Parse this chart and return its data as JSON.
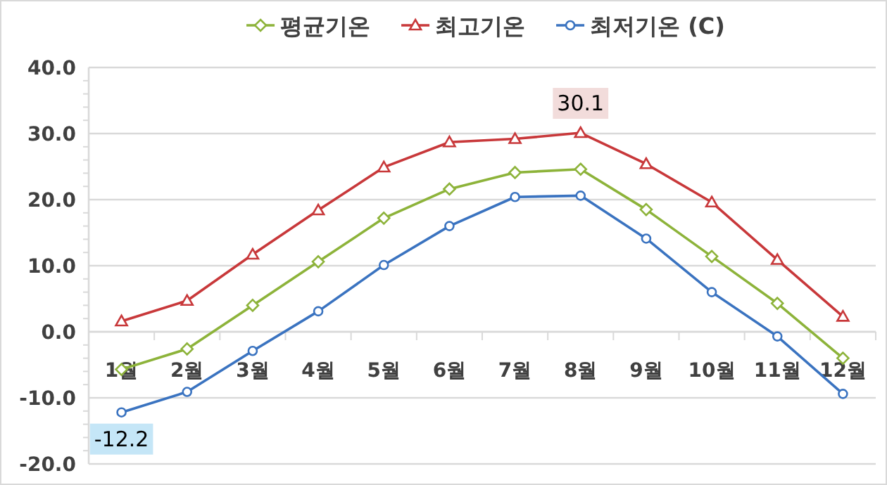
{
  "chart_data": {
    "type": "line",
    "categories": [
      "1월",
      "2월",
      "3월",
      "4월",
      "5월",
      "6월",
      "7월",
      "8월",
      "9월",
      "10월",
      "11월",
      "12월"
    ],
    "series": [
      {
        "name": "평균기온",
        "color": "#8db33a",
        "marker": "diamond",
        "values": [
          -5.7,
          -2.6,
          4.0,
          10.6,
          17.2,
          21.6,
          24.1,
          24.6,
          18.5,
          11.4,
          4.3,
          -4.0
        ]
      },
      {
        "name": "최고기온",
        "color": "#c8383a",
        "marker": "triangle",
        "values": [
          1.6,
          4.7,
          11.7,
          18.4,
          24.9,
          28.7,
          29.2,
          30.1,
          25.4,
          19.6,
          10.9,
          2.3
        ]
      },
      {
        "name": "최저기온 (C)",
        "color": "#3a73c0",
        "marker": "circle",
        "values": [
          -12.2,
          -9.1,
          -2.9,
          3.1,
          10.1,
          16.0,
          20.4,
          20.6,
          14.1,
          6.0,
          -0.7,
          -9.4
        ]
      }
    ],
    "ylim": [
      -20,
      40
    ],
    "yticks": [
      {
        "value": -20,
        "label": "-20.0"
      },
      {
        "value": -10,
        "label": "-10.0"
      },
      {
        "value": 0,
        "label": "0.0"
      },
      {
        "value": 10,
        "label": "10.0"
      },
      {
        "value": 20,
        "label": "20.0"
      },
      {
        "value": 30,
        "label": "30.0"
      },
      {
        "value": 40,
        "label": "40.0"
      }
    ],
    "grid": "y",
    "legend": "top",
    "annotations": [
      {
        "text": "30.1",
        "x": "8월",
        "y": 30.1
      },
      {
        "text": "-12.2",
        "x": "1월",
        "y": -12.2
      }
    ]
  }
}
